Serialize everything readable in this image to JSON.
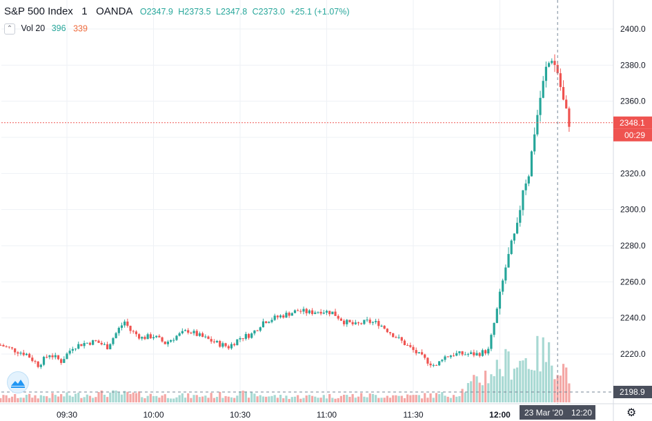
{
  "legend": {
    "symbol": "S&P 500 Index",
    "interval": "1",
    "source": "OANDA",
    "open": "O2347.9",
    "high": "H2373.5",
    "low": "L2347.8",
    "close": "C2373.0",
    "change": "+25.1 (+1.07%)",
    "collapse_icon": "chevron-up-icon",
    "volume_label": "Vol 20",
    "volume_value": "396",
    "volume_ma": "339"
  },
  "price_axis": {
    "ticks": [
      "2400.0",
      "2380.0",
      "2360.0",
      "2340.0",
      "2320.0",
      "2300.0",
      "2280.0",
      "2260.0",
      "2240.0",
      "2220.0"
    ],
    "last_price_label": "2348.1",
    "countdown_label": "00:29",
    "crosshair_price_label": "2198.9"
  },
  "time_axis": {
    "ticks": [
      "09:30",
      "10:00",
      "10:30",
      "11:00",
      "11:30",
      "12:00"
    ],
    "crosshair_date_label": "23 Mar '20",
    "crosshair_time_label": "12:20"
  },
  "colors": {
    "up": "#26a69a",
    "down": "#ef5350",
    "vol_up": "#a8d9d3",
    "vol_down": "#f4a7a5",
    "grid": "#eef1f5",
    "last_price_line": "#ef5350",
    "crosshair_label_bg": "#4a4f5c"
  },
  "chart_data": {
    "type": "candlestick",
    "title": "S&P 500 Index",
    "interval": "1",
    "source": "OANDA",
    "date": "23 Mar '20",
    "x_range": [
      "09:07",
      "12:34"
    ],
    "ylim": [
      2198,
      2410
    ],
    "grid": true,
    "last_price": 2348.1,
    "close_path": [
      [
        "09:07",
        2225
      ],
      [
        "09:12",
        2222
      ],
      [
        "09:16",
        2220
      ],
      [
        "09:20",
        2214
      ],
      [
        "09:24",
        2220
      ],
      [
        "09:28",
        2216
      ],
      [
        "09:32",
        2224
      ],
      [
        "09:36",
        2226
      ],
      [
        "09:40",
        2227
      ],
      [
        "09:44",
        2224
      ],
      [
        "09:48",
        2234
      ],
      [
        "09:50",
        2238
      ],
      [
        "09:52",
        2233
      ],
      [
        "09:56",
        2229
      ],
      [
        "10:00",
        2230
      ],
      [
        "10:04",
        2226
      ],
      [
        "10:08",
        2230
      ],
      [
        "10:12",
        2233
      ],
      [
        "10:16",
        2230
      ],
      [
        "10:22",
        2226
      ],
      [
        "10:26",
        2224
      ],
      [
        "10:30",
        2229
      ],
      [
        "10:34",
        2231
      ],
      [
        "10:38",
        2238
      ],
      [
        "10:42",
        2240
      ],
      [
        "10:46",
        2242
      ],
      [
        "10:50",
        2244
      ],
      [
        "10:54",
        2243
      ],
      [
        "10:58",
        2244
      ],
      [
        "11:02",
        2243
      ],
      [
        "11:06",
        2238
      ],
      [
        "11:10",
        2236
      ],
      [
        "11:14",
        2238
      ],
      [
        "11:18",
        2237
      ],
      [
        "11:22",
        2232
      ],
      [
        "11:26",
        2227
      ],
      [
        "11:30",
        2222
      ],
      [
        "11:34",
        2217
      ],
      [
        "11:38",
        2213
      ],
      [
        "11:40",
        2218
      ],
      [
        "11:44",
        2220
      ],
      [
        "11:48",
        2220
      ],
      [
        "11:52",
        2220
      ],
      [
        "11:56",
        2222
      ],
      [
        "12:00",
        2252
      ],
      [
        "12:02",
        2268
      ],
      [
        "12:04",
        2280
      ],
      [
        "12:06",
        2290
      ],
      [
        "12:08",
        2312
      ],
      [
        "12:10",
        2320
      ],
      [
        "12:12",
        2343
      ],
      [
        "12:14",
        2362
      ],
      [
        "12:16",
        2378
      ],
      [
        "12:18",
        2384
      ],
      [
        "12:20",
        2376
      ],
      [
        "12:22",
        2360
      ],
      [
        "12:24",
        2348
      ]
    ],
    "volume_profile": [
      [
        "09:07",
        8
      ],
      [
        "09:30",
        10
      ],
      [
        "09:45",
        13
      ],
      [
        "10:00",
        10
      ],
      [
        "10:15",
        9
      ],
      [
        "10:30",
        12
      ],
      [
        "10:45",
        8
      ],
      [
        "11:00",
        9
      ],
      [
        "11:15",
        10
      ],
      [
        "11:30",
        9
      ],
      [
        "11:45",
        12
      ],
      [
        "12:00",
        52
      ],
      [
        "12:05",
        60
      ],
      [
        "12:10",
        62
      ],
      [
        "12:15",
        70
      ],
      [
        "12:20",
        58
      ],
      [
        "12:24",
        42
      ],
      [
        "12:26",
        8
      ]
    ]
  }
}
